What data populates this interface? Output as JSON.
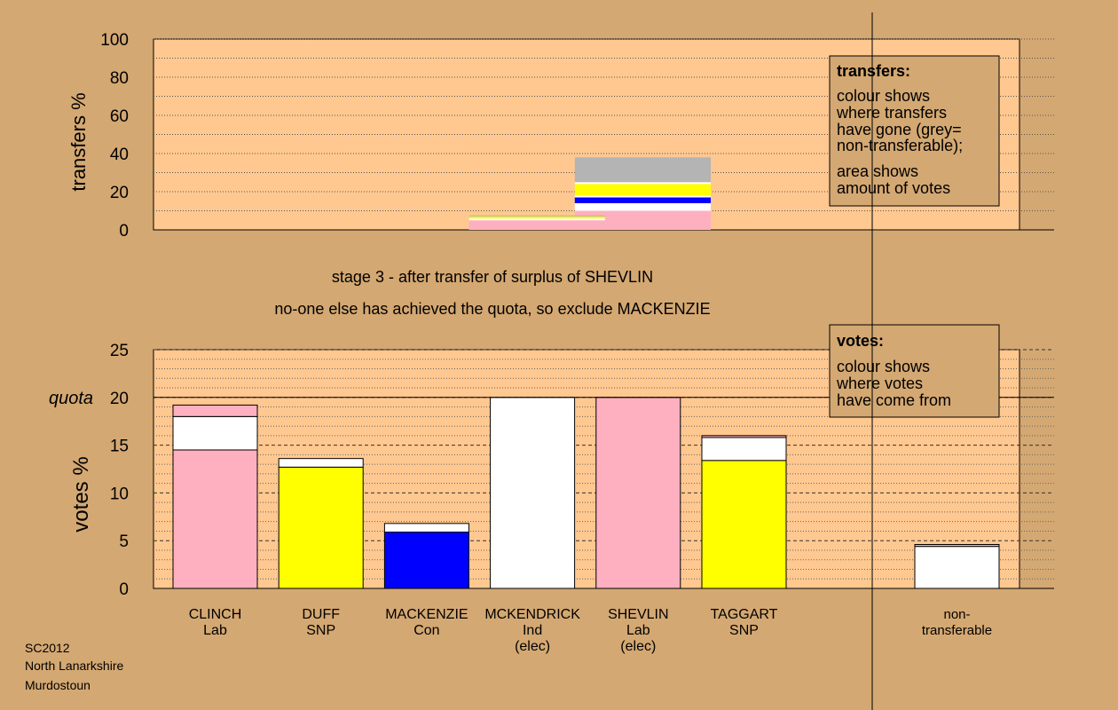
{
  "colors": {
    "background": "#d4a872",
    "plot_bg": "#ffc890",
    "legend_bg": "#d4a872",
    "Lab": "#ffb0c0",
    "SNP": "#ffff00",
    "Con": "#0000ff",
    "Ind": "#ffffff",
    "nontransferable": "#b4b4b4"
  },
  "stage_text": "stage 3 - after transfer of surplus of SHEVLIN",
  "exclusion_text": "no-one else has achieved the quota, so exclude MACKENZIE",
  "footer": [
    "SC2012",
    "North Lanarkshire",
    "Murdostoun"
  ],
  "chart_data": [
    {
      "type": "bar",
      "ylabel": "transfers %",
      "ylim": [
        0,
        100
      ],
      "yticks": [
        0,
        20,
        40,
        60,
        80,
        100
      ],
      "legend": {
        "title": "transfers:",
        "lines": [
          "colour shows",
          "where transfers",
          "have gone (grey=",
          "non-transferable);",
          "area shows",
          "amount of votes"
        ]
      },
      "blocks": [
        {
          "category_span": [
            "SHEVLIN",
            "SHEVLIN"
          ],
          "segments": [
            {
              "color_key": "Lab",
              "from": 0,
              "to": 10
            },
            {
              "color_key": "Ind",
              "from": 10,
              "to": 14
            },
            {
              "color_key": "Con",
              "from": 14,
              "to": 17
            },
            {
              "color_key": "Ind",
              "from": 17,
              "to": 18
            },
            {
              "color_key": "SNP",
              "from": 18,
              "to": 24
            },
            {
              "color_key": "Ind",
              "from": 24,
              "to": 25
            },
            {
              "color_key": "nontransferable",
              "from": 25,
              "to": 38
            }
          ]
        },
        {
          "category_span": [
            "MCKENDRICK",
            "MCKENDRICK"
          ],
          "segments": [
            {
              "color_key": "Lab",
              "from": 0,
              "to": 5
            },
            {
              "color_key": "Ind",
              "from": 5,
              "to": 6
            },
            {
              "color_key": "SNP",
              "from": 6,
              "to": 7
            },
            {
              "color_key": "nontransferable",
              "from": 7,
              "to": 7.5
            }
          ]
        }
      ]
    },
    {
      "type": "bar",
      "stacked": true,
      "ylabel": "votes %",
      "ylim": [
        0,
        25
      ],
      "yticks": [
        0,
        5,
        10,
        15,
        20,
        25
      ],
      "quota": 20,
      "quota_label": "quota",
      "legend": {
        "title": "votes:",
        "lines": [
          "colour shows",
          "where votes",
          "have come from"
        ]
      },
      "categories": [
        {
          "name": "CLINCH",
          "party": "Lab",
          "note": ""
        },
        {
          "name": "DUFF",
          "party": "SNP",
          "note": ""
        },
        {
          "name": "MACKENZIE",
          "party": "Con",
          "note": ""
        },
        {
          "name": "MCKENDRICK",
          "party": "Ind",
          "note": "(elec)"
        },
        {
          "name": "SHEVLIN",
          "party": "Lab",
          "note": "(elec)"
        },
        {
          "name": "TAGGART",
          "party": "SNP",
          "note": ""
        },
        {
          "name": "non-",
          "party": "transferable",
          "note": ""
        }
      ],
      "stacks": [
        [
          {
            "color_key": "Lab",
            "value": 14.5
          },
          {
            "color_key": "Ind",
            "value": 3.5
          },
          {
            "color_key": "Lab",
            "value": 1.2
          }
        ],
        [
          {
            "color_key": "SNP",
            "value": 12.7
          },
          {
            "color_key": "Ind",
            "value": 0.9
          }
        ],
        [
          {
            "color_key": "Con",
            "value": 5.9
          },
          {
            "color_key": "Ind",
            "value": 0.9
          }
        ],
        [
          {
            "color_key": "Ind",
            "value": 20.0
          }
        ],
        [
          {
            "color_key": "Lab",
            "value": 20.0
          }
        ],
        [
          {
            "color_key": "SNP",
            "value": 13.4
          },
          {
            "color_key": "Ind",
            "value": 2.4
          },
          {
            "color_key": "Lab",
            "value": 0.2
          }
        ],
        [
          {
            "color_key": "Ind",
            "value": 4.4
          },
          {
            "color_key": "Lab",
            "value": 0.2
          }
        ]
      ]
    }
  ]
}
